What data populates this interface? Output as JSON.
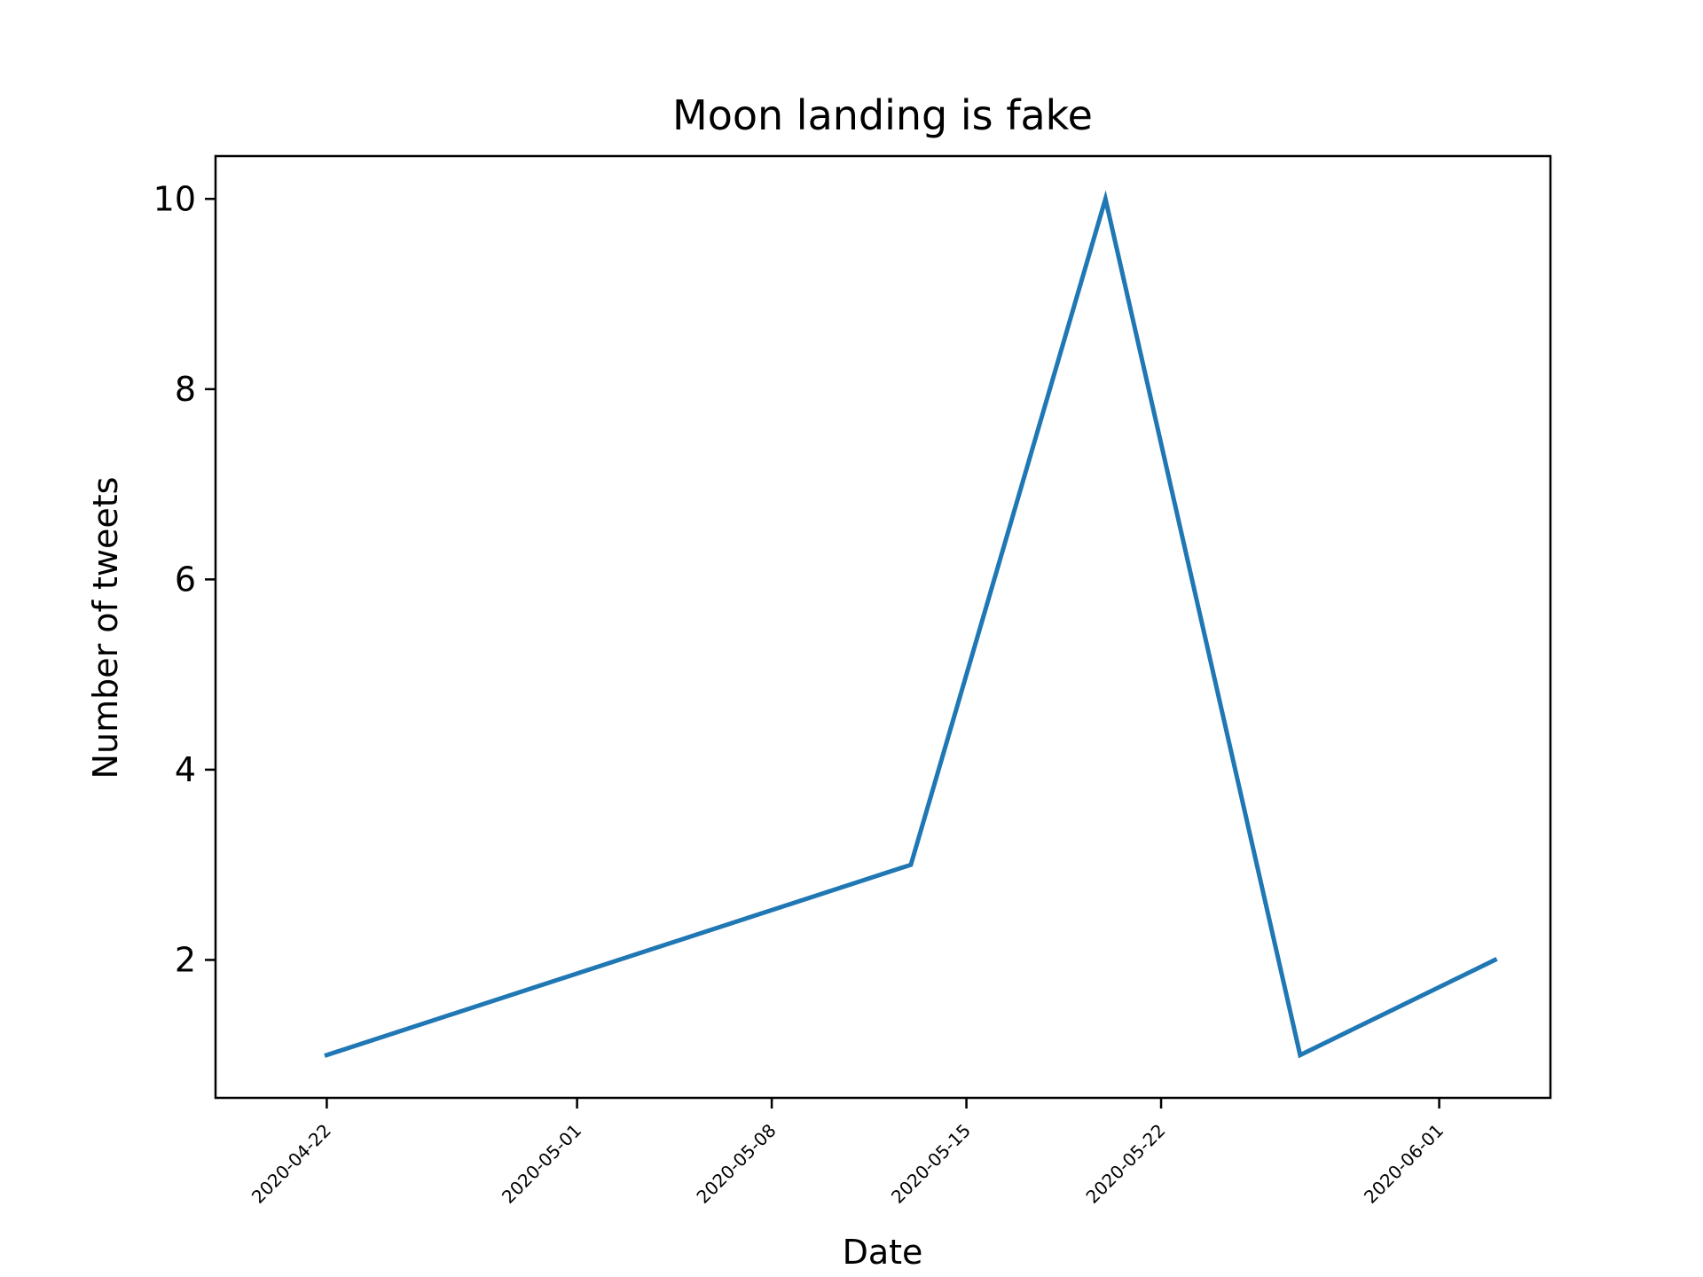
{
  "chart_data": {
    "type": "line",
    "title": "Moon landing is fake",
    "xlabel": "Date",
    "ylabel": "Number of tweets",
    "x_type": "date",
    "xlim": [
      "2020-04-18",
      "2020-06-05"
    ],
    "ylim": [
      0.55,
      10.45
    ],
    "xticks": [
      "2020-04-22",
      "2020-05-01",
      "2020-05-08",
      "2020-05-15",
      "2020-05-22",
      "2020-06-01"
    ],
    "yticks": [
      2,
      4,
      6,
      8,
      10
    ],
    "grid": false,
    "legend": "none",
    "series": [
      {
        "x": [
          "2020-04-22",
          "2020-05-13",
          "2020-05-20",
          "2020-05-27",
          "2020-06-03"
        ],
        "y": [
          1,
          3,
          10,
          1,
          2
        ],
        "color": "#1f77b4"
      }
    ]
  }
}
